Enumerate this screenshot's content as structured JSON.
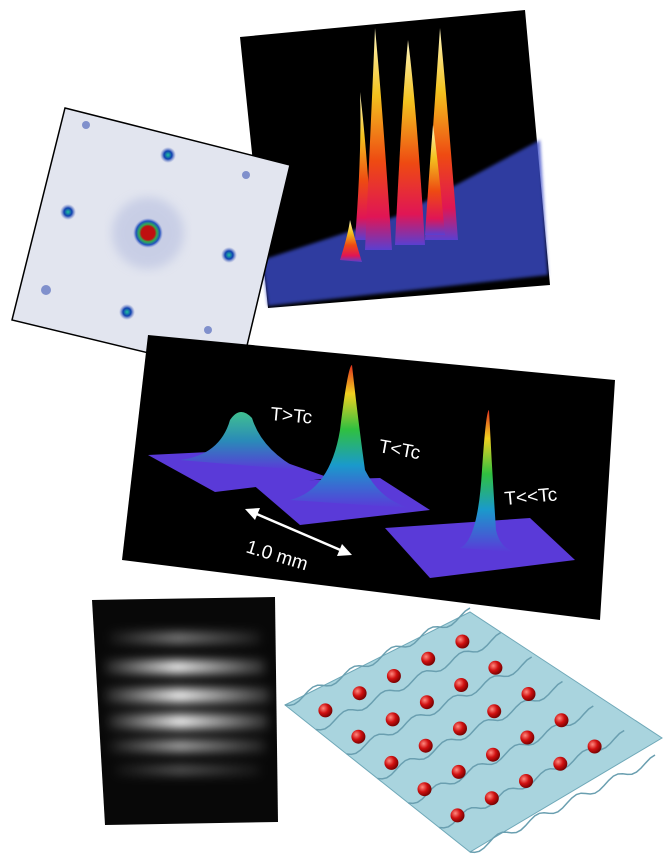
{
  "condensate_panel": {
    "labels": [
      "T>Tc",
      "T<Tc",
      "T<<Tc"
    ],
    "scale_label": "1.0 mm"
  }
}
